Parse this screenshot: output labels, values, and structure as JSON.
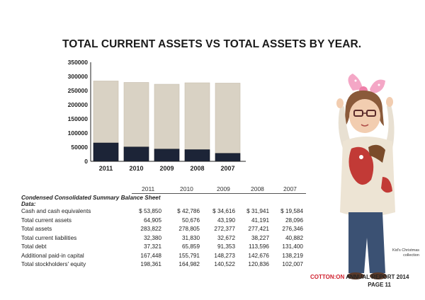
{
  "chart_data": {
    "type": "bar",
    "title": "TOTAL CURRENT ASSETS VS TOTAL ASSETS BY YEAR.",
    "categories": [
      "2011",
      "2010",
      "2009",
      "2008",
      "2007"
    ],
    "series": [
      {
        "name": "",
        "values": [
          283822,
          278805,
          272377,
          277421,
          276346
        ],
        "color": "#d9d2c4"
      },
      {
        "name": "",
        "values": [
          64905,
          50676,
          43190,
          41191,
          28096
        ],
        "color": "#1c2437"
      }
    ],
    "y_ticks": [
      "0",
      "50000",
      "100000",
      "150000",
      "200000",
      "250000",
      "300000",
      "350000"
    ],
    "ylim": [
      0,
      350000
    ],
    "grid": false,
    "legend": "none"
  },
  "table": {
    "section_title": "Condensed Consolidated Summary Balance Sheet Data:",
    "years": [
      "2011",
      "2010",
      "2009",
      "2008",
      "2007"
    ],
    "rows": [
      {
        "label": "Cash and cash equivalents",
        "values": [
          "$ 53,850",
          "$ 42,786",
          "$ 34,616",
          "$ 31,941",
          "$ 19,584"
        ]
      },
      {
        "label": "Total current assets",
        "values": [
          "64,905",
          "50,676",
          "43,190",
          "41,191",
          "28,096"
        ]
      },
      {
        "label": "Total assets",
        "values": [
          "283,822",
          "278,805",
          "272,377",
          "277,421",
          "276,346"
        ]
      },
      {
        "label": "Total current liabilities",
        "values": [
          "32,380",
          "31,830",
          "32,672",
          "38,227",
          "40,882"
        ]
      },
      {
        "label": "Total debt",
        "values": [
          "37,321",
          "65,859",
          "91,353",
          "113,596",
          "131,400"
        ]
      },
      {
        "label": "Additional paid-in capital",
        "values": [
          "167,448",
          "155,791",
          "148,273",
          "142,676",
          "138,219"
        ]
      },
      {
        "label": "Total stockholders' equity",
        "values": [
          "198,361",
          "164,982",
          "140,522",
          "120,836",
          "102,007"
        ]
      }
    ]
  },
  "caption": "Kid's Christmas collection",
  "footer": {
    "brand": "COTTON:ON",
    "report": " ANNUAL REPORT 2014",
    "page": "PAGE 11"
  }
}
